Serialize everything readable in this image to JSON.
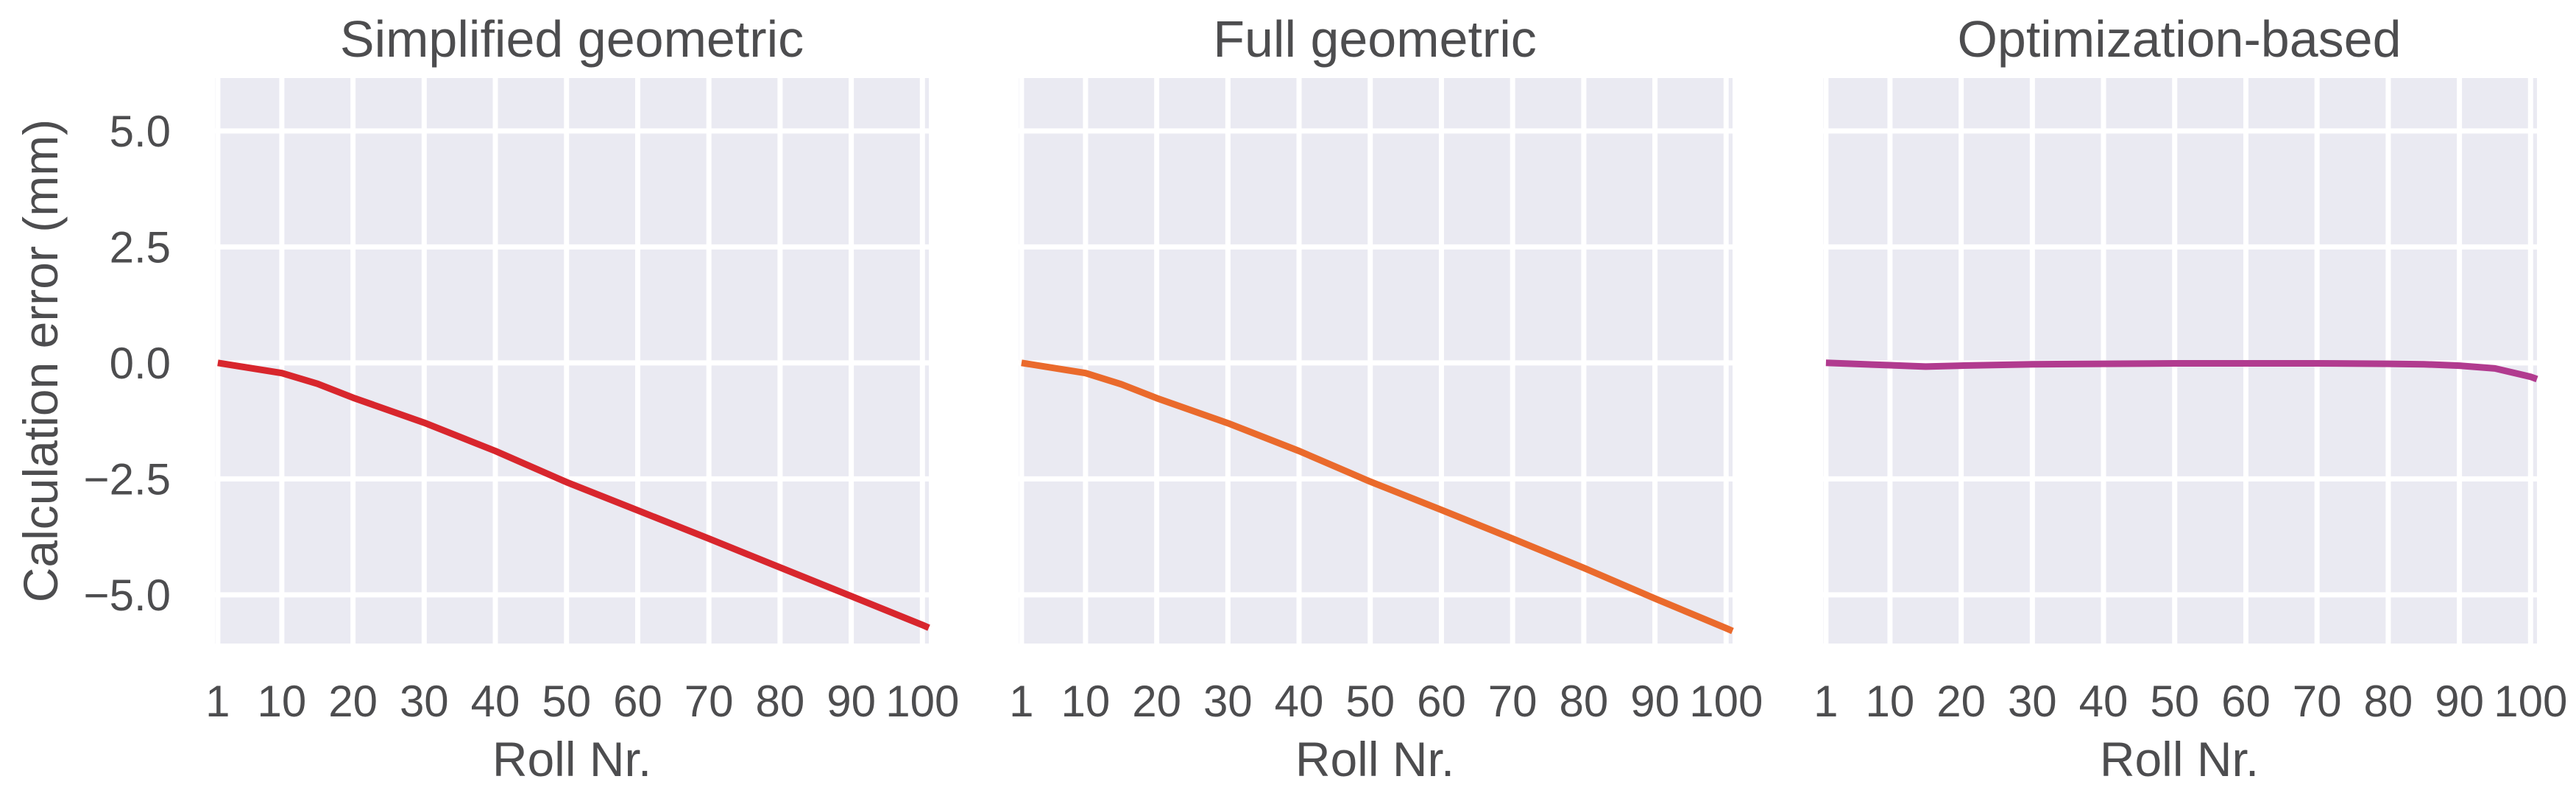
{
  "figure": {
    "ylabel": "Calculation error (mm)",
    "xlabel": "Roll Nr.",
    "background": "#eaeaf2",
    "text_color": "#4d4d4f",
    "grid_color": "#ffffff"
  },
  "chart_data": [
    {
      "type": "line",
      "title": "Simplified geometric",
      "xlabel": "Roll Nr.",
      "ylabel": "Calculation error (mm)",
      "xticks": [
        1,
        10,
        20,
        30,
        40,
        50,
        60,
        70,
        80,
        90,
        100
      ],
      "yticks": [
        5.0,
        2.5,
        0.0,
        -2.5,
        -5.0
      ],
      "ytick_labels": [
        "5.0",
        "2.5",
        "0.0",
        "−2.5",
        "−5.0"
      ],
      "xlim": [
        0.6,
        100.9
      ],
      "ylim": [
        -6.05,
        6.14
      ],
      "grid": true,
      "color": "#d8262d",
      "x": [
        1,
        10,
        15,
        20,
        30,
        40,
        50,
        60,
        70,
        80,
        90,
        100,
        100.9
      ],
      "y": [
        0.0,
        -0.22,
        -0.45,
        -0.75,
        -1.29,
        -1.9,
        -2.57,
        -3.18,
        -3.79,
        -4.41,
        -5.03,
        -5.65,
        -5.71
      ]
    },
    {
      "type": "line",
      "title": "Full geometric",
      "xlabel": "Roll Nr.",
      "ylabel": "",
      "xticks": [
        1,
        10,
        20,
        30,
        40,
        50,
        60,
        70,
        80,
        90,
        100
      ],
      "yticks": [
        5.0,
        2.5,
        0.0,
        -2.5,
        -5.0
      ],
      "xlim": [
        0.6,
        100.9
      ],
      "ylim": [
        -6.05,
        6.14
      ],
      "grid": true,
      "color": "#ea6a2c",
      "x": [
        1,
        10,
        15,
        20,
        30,
        40,
        50,
        60,
        70,
        80,
        90,
        100,
        100.9
      ],
      "y": [
        0.0,
        -0.22,
        -0.46,
        -0.76,
        -1.3,
        -1.9,
        -2.56,
        -3.17,
        -3.79,
        -4.42,
        -5.08,
        -5.72,
        -5.78
      ]
    },
    {
      "type": "line",
      "title": "Optimization-based",
      "xlabel": "Roll Nr.",
      "ylabel": "",
      "xticks": [
        1,
        10,
        20,
        30,
        40,
        50,
        60,
        70,
        80,
        90,
        100
      ],
      "yticks": [
        5.0,
        2.5,
        0.0,
        -2.5,
        -5.0
      ],
      "xlim": [
        0.6,
        100.9
      ],
      "ylim": [
        -6.05,
        6.14
      ],
      "grid": true,
      "color": "#b13b8f",
      "x": [
        1,
        10,
        15,
        20,
        30,
        40,
        50,
        60,
        70,
        80,
        85,
        90,
        95,
        100,
        100.9
      ],
      "y": [
        0.0,
        -0.05,
        -0.08,
        -0.06,
        -0.03,
        -0.02,
        -0.01,
        -0.01,
        -0.01,
        -0.02,
        -0.03,
        -0.06,
        -0.12,
        -0.3,
        -0.35
      ]
    }
  ]
}
